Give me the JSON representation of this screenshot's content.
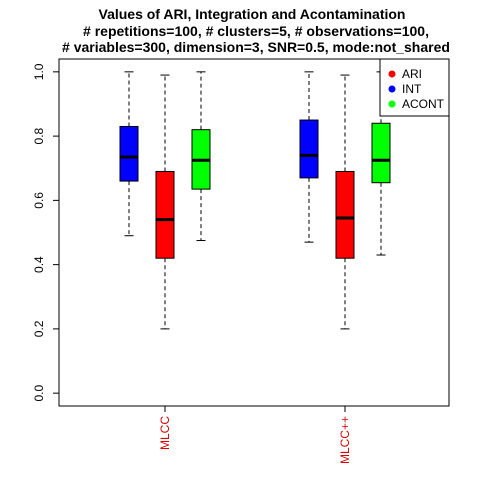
{
  "chart_data": {
    "type": "box",
    "title_lines": [
      "Values of ARI, Integration and Acontamination",
      "# repetitions=100, # clusters=5, # observations=100,",
      "# variables=300, dimension=3, SNR=0.5, mode:not_shared"
    ],
    "xlabel": "",
    "ylabel": "",
    "ylim": [
      -0.04,
      1.04
    ],
    "y_ticks": [
      0.0,
      0.2,
      0.4,
      0.6,
      0.8,
      1.0
    ],
    "y_tick_labels": [
      "0.0",
      "0.2",
      "0.4",
      "0.6",
      "0.8",
      "1.0"
    ],
    "categories": [
      "MLCC",
      "MLCC++"
    ],
    "category_label_color": "#dd0000",
    "grid": false,
    "legend_position": "top-right",
    "legend": [
      {
        "label": "ARI",
        "color": "#ff0000"
      },
      {
        "label": "INT",
        "color": "#0000ff"
      },
      {
        "label": "ACONT",
        "color": "#00ff00"
      }
    ],
    "series": [
      {
        "name": "ARI",
        "color": "#ff0000",
        "boxes": [
          {
            "category": "MLCC",
            "min": 0.2,
            "q1": 0.42,
            "median": 0.54,
            "q3": 0.69,
            "max": 0.99
          },
          {
            "category": "MLCC++",
            "min": 0.2,
            "q1": 0.42,
            "median": 0.545,
            "q3": 0.69,
            "max": 0.99
          }
        ]
      },
      {
        "name": "INT",
        "color": "#0000ff",
        "boxes": [
          {
            "category": "MLCC",
            "min": 0.49,
            "q1": 0.66,
            "median": 0.735,
            "q3": 0.83,
            "max": 1.0
          },
          {
            "category": "MLCC++",
            "min": 0.47,
            "q1": 0.67,
            "median": 0.74,
            "q3": 0.85,
            "max": 1.0
          }
        ]
      },
      {
        "name": "ACONT",
        "color": "#00ff00",
        "boxes": [
          {
            "category": "MLCC",
            "min": 0.475,
            "q1": 0.635,
            "median": 0.725,
            "q3": 0.82,
            "max": 1.0
          },
          {
            "category": "MLCC++",
            "min": 0.43,
            "q1": 0.655,
            "median": 0.725,
            "q3": 0.84,
            "max": 1.0
          }
        ]
      }
    ]
  }
}
